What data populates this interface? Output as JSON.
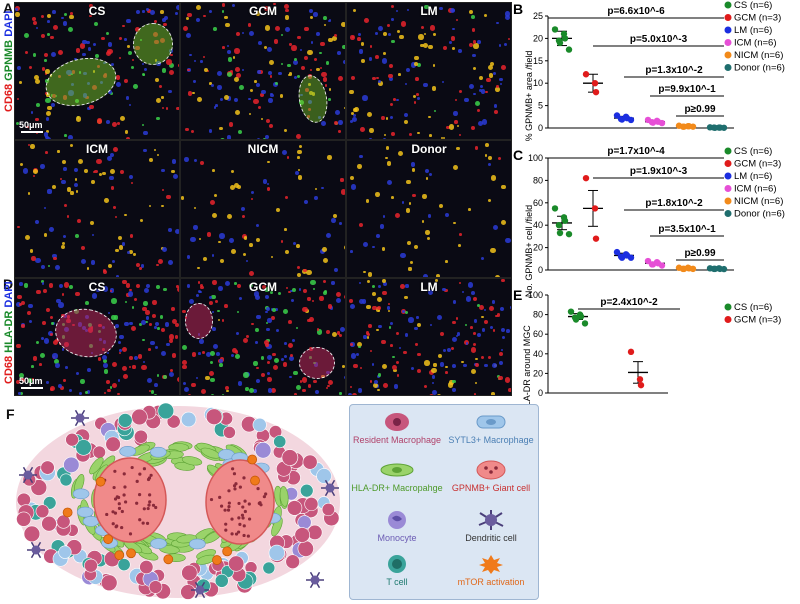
{
  "panels": {
    "A": {
      "letter": "A",
      "stain_label": {
        "cd68": "CD68",
        "marker": "GPNMB",
        "dapi": "DAPI"
      },
      "images": [
        {
          "label": "CS"
        },
        {
          "label": "GCM"
        },
        {
          "label": "LM"
        },
        {
          "label": "ICM"
        },
        {
          "label": "NICM"
        },
        {
          "label": "Donor"
        }
      ],
      "scale_label": "50μm"
    },
    "D": {
      "letter": "D",
      "stain_label": {
        "cd68": "CD68",
        "marker": "HLA-DR",
        "dapi": "DAPI"
      },
      "images": [
        {
          "label": "CS"
        },
        {
          "label": "GCM"
        },
        {
          "label": "LM"
        }
      ],
      "scale_label": "50μm"
    },
    "F": {
      "letter": "F"
    }
  },
  "colors": {
    "CS": "#1a8a2a",
    "GCM": "#e01b1b",
    "LM": "#1b2ee0",
    "ICM": "#e64fd6",
    "NICM": "#f28a1a",
    "Donor": "#1f6e6e"
  },
  "chart_data": [
    {
      "panel": "B",
      "type": "scatter",
      "ylabel": "% GPNMB+ area /field",
      "ylim": [
        0,
        25
      ],
      "yticks": [
        0,
        5,
        10,
        15,
        20,
        25
      ],
      "groups": [
        {
          "name": "CS (n=6)",
          "key": "CS",
          "mean": 20,
          "err": 1.6,
          "values": [
            22,
            21,
            20,
            19.5,
            19,
            17.5
          ]
        },
        {
          "name": "GCM (n=3)",
          "key": "GCM",
          "mean": 10,
          "err": 2,
          "values": [
            12,
            10,
            8
          ]
        },
        {
          "name": "LM (n=6)",
          "key": "LM",
          "mean": 2.2,
          "err": 0.4,
          "values": [
            2.8,
            2.5,
            2.2,
            2.0,
            1.9,
            1.8
          ]
        },
        {
          "name": "ICM (n=6)",
          "key": "ICM",
          "mean": 1.4,
          "err": 0.3,
          "values": [
            1.8,
            1.6,
            1.4,
            1.3,
            1.2,
            1.1
          ]
        },
        {
          "name": "NICM (n=6)",
          "key": "NICM",
          "mean": 0.4,
          "err": 0.1,
          "values": [
            0.5,
            0.4,
            0.4,
            0.3,
            0.3,
            0.3
          ]
        },
        {
          "name": "Donor (n=6)",
          "key": "Donor",
          "mean": 0.1,
          "err": 0.05,
          "values": [
            0.15,
            0.1,
            0.1,
            0.1,
            0.05,
            0.05
          ]
        }
      ],
      "pvalues": [
        "p=6.6x10^-6",
        "p=5.0x10^-3",
        "p=1.3x10^-2",
        "p=9.9x10^-1",
        "p≥0.99"
      ]
    },
    {
      "panel": "C",
      "type": "scatter",
      "ylabel": "No. GPNMB+ cell /field",
      "ylim": [
        0,
        100
      ],
      "yticks": [
        0,
        20,
        40,
        60,
        80,
        100
      ],
      "groups": [
        {
          "name": "CS (n=6)",
          "key": "CS",
          "mean": 42,
          "err": 6,
          "values": [
            55,
            47,
            44,
            40,
            33,
            32
          ]
        },
        {
          "name": "GCM (n=3)",
          "key": "GCM",
          "mean": 55,
          "err": 16,
          "values": [
            82,
            55,
            28
          ]
        },
        {
          "name": "LM (n=6)",
          "key": "LM",
          "mean": 13,
          "err": 2,
          "values": [
            16,
            14,
            13,
            12,
            11,
            11
          ]
        },
        {
          "name": "ICM (n=6)",
          "key": "ICM",
          "mean": 6,
          "err": 1,
          "values": [
            8,
            7,
            6,
            5,
            5,
            4
          ]
        },
        {
          "name": "NICM (n=6)",
          "key": "NICM",
          "mean": 1.5,
          "err": 0.4,
          "values": [
            2,
            2,
            1.5,
            1,
            1,
            1
          ]
        },
        {
          "name": "Donor (n=6)",
          "key": "Donor",
          "mean": 1.2,
          "err": 0.3,
          "values": [
            1.5,
            1.5,
            1,
            1,
            1,
            0.8
          ]
        }
      ],
      "pvalues": [
        "p=1.7x10^-4",
        "p=1.9x10^-3",
        "p=1.8x10^-2",
        "p=3.5x10^-1",
        "p≥0.99"
      ]
    },
    {
      "panel": "E",
      "type": "scatter",
      "ylabel": "%HLA-DR around MGC",
      "ylim": [
        0,
        100
      ],
      "yticks": [
        0,
        20,
        40,
        60,
        80,
        100
      ],
      "groups": [
        {
          "name": "CS (n=6)",
          "key": "CS",
          "mean": 78,
          "err": 3,
          "values": [
            83,
            80,
            78,
            77,
            75,
            71
          ]
        },
        {
          "name": "GCM (n=3)",
          "key": "GCM",
          "mean": 21,
          "err": 11,
          "values": [
            42,
            14,
            8
          ]
        }
      ],
      "pvalues": [
        "p=2.4x10^-2"
      ]
    }
  ],
  "legend_F": {
    "items": [
      {
        "label": "Resident Macrophage",
        "icon": "resident-macrophage-icon"
      },
      {
        "label": "SYTL3+ Macrophage",
        "icon": "sytl3-macrophage-icon"
      },
      {
        "label": "HLA-DR+ Macropahge",
        "icon": "hla-dr-macrophage-icon"
      },
      {
        "label": "GPNMB+ Giant cell",
        "icon": "giant-cell-icon"
      },
      {
        "label": "Monocyte",
        "icon": "monocyte-icon"
      },
      {
        "label": "Dendritic cell",
        "icon": "dendritic-cell-icon"
      },
      {
        "label": "T cell",
        "icon": "t-cell-icon"
      },
      {
        "label": "mTOR activation",
        "icon": "mtor-activation-icon"
      }
    ]
  }
}
